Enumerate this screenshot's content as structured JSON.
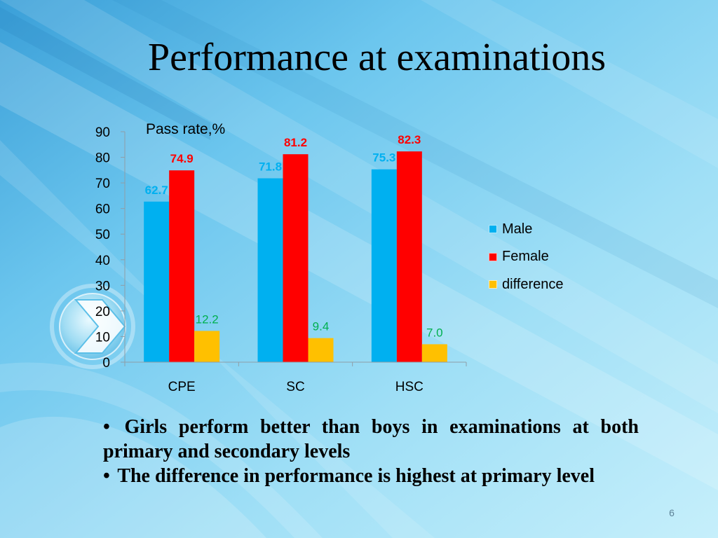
{
  "slide": {
    "title": "Performance at examinations",
    "bullet_char": "•",
    "bullets": [
      "Girls perform better than boys  in examinations at both primary and secondary  levels",
      "The difference in performance is highest at primary level"
    ],
    "page_number": "6"
  },
  "chart_data": {
    "type": "bar",
    "ylabel": "Pass rate,%",
    "categories": [
      "CPE",
      "SC",
      "HSC"
    ],
    "ylim": [
      0,
      90
    ],
    "yticks": [
      0,
      10,
      20,
      30,
      40,
      50,
      60,
      70,
      80,
      90
    ],
    "series": [
      {
        "name": "Male",
        "values": [
          62.7,
          71.8,
          75.3
        ],
        "color": "#00B0F0",
        "label_color": "#00B0F0"
      },
      {
        "name": "Female",
        "values": [
          74.9,
          81.2,
          82.3
        ],
        "color": "#FF0000",
        "label_color": "#FF0000"
      },
      {
        "name": "difference",
        "values": [
          12.2,
          9.4,
          7.0
        ],
        "color": "#FFC000",
        "label_color": "#00B050"
      }
    ],
    "legend": "right",
    "grid": false
  }
}
